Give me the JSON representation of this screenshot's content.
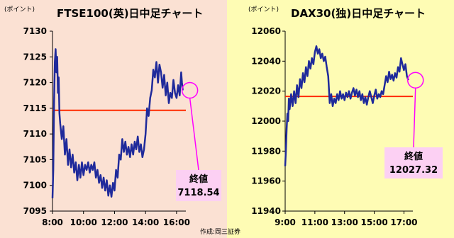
{
  "chart_data": [
    {
      "id": "ftse",
      "type": "line",
      "title": "FTSE100(英)日中足チャート",
      "unit": "(ポイント)",
      "ylim": [
        7095,
        7130
      ],
      "y_ticks": [
        7130,
        7125,
        7120,
        7115,
        7110,
        7105,
        7100,
        7095
      ],
      "x_ticks": [
        "8:00",
        "10:00",
        "12:00",
        "14:00",
        "16:00"
      ],
      "x_ticks_hours": [
        8,
        10,
        12,
        14,
        16
      ],
      "xlim_hours": [
        8,
        16.6
      ],
      "reference_line": 7114.6,
      "close_label": "終値",
      "close_value": "7118.54",
      "series": [
        {
          "values": [
            [
              8.0,
              7097.5
            ],
            [
              8.05,
              7103.0
            ],
            [
              8.1,
              7116.0
            ],
            [
              8.15,
              7124.0
            ],
            [
              8.2,
              7126.5
            ],
            [
              8.25,
              7122.0
            ],
            [
              8.3,
              7125.0
            ],
            [
              8.35,
              7118.0
            ],
            [
              8.4,
              7121.0
            ],
            [
              8.45,
              7114.0
            ],
            [
              8.5,
              7112.0
            ],
            [
              8.6,
              7109.0
            ],
            [
              8.7,
              7111.5
            ],
            [
              8.8,
              7106.0
            ],
            [
              8.9,
              7109.0
            ],
            [
              9.0,
              7104.0
            ],
            [
              9.1,
              7107.0
            ],
            [
              9.2,
              7103.5
            ],
            [
              9.3,
              7106.0
            ],
            [
              9.4,
              7102.5
            ],
            [
              9.5,
              7104.5
            ],
            [
              9.6,
              7101.0
            ],
            [
              9.7,
              7104.0
            ],
            [
              9.8,
              7101.5
            ],
            [
              9.9,
              7104.5
            ],
            [
              10.0,
              7102.0
            ],
            [
              10.1,
              7104.0
            ],
            [
              10.2,
              7103.0
            ],
            [
              10.3,
              7104.5
            ],
            [
              10.4,
              7102.5
            ],
            [
              10.5,
              7104.0
            ],
            [
              10.6,
              7103.0
            ],
            [
              10.7,
              7104.5
            ],
            [
              10.8,
              7101.5
            ],
            [
              10.9,
              7103.0
            ],
            [
              11.0,
              7100.5
            ],
            [
              11.1,
              7102.0
            ],
            [
              11.2,
              7099.5
            ],
            [
              11.3,
              7101.5
            ],
            [
              11.4,
              7099.0
            ],
            [
              11.5,
              7101.0
            ],
            [
              11.6,
              7098.0
            ],
            [
              11.7,
              7100.0
            ],
            [
              11.8,
              7097.8
            ],
            [
              11.9,
              7100.5
            ],
            [
              12.0,
              7099.0
            ],
            [
              12.1,
              7103.0
            ],
            [
              12.2,
              7101.5
            ],
            [
              12.3,
              7106.0
            ],
            [
              12.4,
              7105.0
            ],
            [
              12.5,
              7109.0
            ],
            [
              12.6,
              7106.5
            ],
            [
              12.7,
              7108.5
            ],
            [
              12.8,
              7106.0
            ],
            [
              12.9,
              7107.5
            ],
            [
              13.0,
              7105.5
            ],
            [
              13.1,
              7108.0
            ],
            [
              13.2,
              7106.0
            ],
            [
              13.3,
              7108.5
            ],
            [
              13.4,
              7107.0
            ],
            [
              13.5,
              7109.5
            ],
            [
              13.6,
              7106.5
            ],
            [
              13.7,
              7108.0
            ],
            [
              13.8,
              7105.5
            ],
            [
              13.9,
              7107.0
            ],
            [
              14.0,
              7110.0
            ],
            [
              14.1,
              7115.0
            ],
            [
              14.2,
              7113.5
            ],
            [
              14.3,
              7117.0
            ],
            [
              14.4,
              7118.5
            ],
            [
              14.5,
              7122.5
            ],
            [
              14.6,
              7121.0
            ],
            [
              14.7,
              7124.0
            ],
            [
              14.8,
              7120.0
            ],
            [
              14.9,
              7123.5
            ],
            [
              15.0,
              7122.0
            ],
            [
              15.1,
              7119.0
            ],
            [
              15.2,
              7121.5
            ],
            [
              15.3,
              7117.5
            ],
            [
              15.4,
              7120.0
            ],
            [
              15.5,
              7116.0
            ],
            [
              15.6,
              7118.0
            ],
            [
              15.7,
              7117.0
            ],
            [
              15.8,
              7120.5
            ],
            [
              15.9,
              7118.0
            ],
            [
              16.0,
              7117.0
            ],
            [
              16.1,
              7119.5
            ],
            [
              16.2,
              7117.5
            ],
            [
              16.3,
              7122.0
            ],
            [
              16.35,
              7120.0
            ],
            [
              16.4,
              7118.5
            ]
          ]
        }
      ]
    },
    {
      "id": "dax",
      "type": "line",
      "title": "DAX30(独)日中足チャート",
      "unit": "(ポイント)",
      "ylim": [
        11940,
        12060
      ],
      "y_ticks": [
        12060,
        12040,
        12020,
        12000,
        11980,
        11960,
        11940
      ],
      "x_ticks": [
        "9:00",
        "11:00",
        "13:00",
        "15:00",
        "17:00"
      ],
      "x_ticks_hours": [
        9,
        11,
        13,
        15,
        17
      ],
      "xlim_hours": [
        9,
        17.6
      ],
      "reference_line": 12016.5,
      "close_label": "終値",
      "close_value": "12027.32",
      "series": [
        {
          "values": [
            [
              9.0,
              11970.0
            ],
            [
              9.05,
              11980.0
            ],
            [
              9.1,
              11995.0
            ],
            [
              9.15,
              12005.0
            ],
            [
              9.2,
              12000.0
            ],
            [
              9.25,
              12015.0
            ],
            [
              9.3,
              12008.0
            ],
            [
              9.4,
              12018.0
            ],
            [
              9.5,
              12010.0
            ],
            [
              9.6,
              12020.0
            ],
            [
              9.7,
              12012.0
            ],
            [
              9.8,
              12024.0
            ],
            [
              9.9,
              12016.0
            ],
            [
              10.0,
              12028.0
            ],
            [
              10.1,
              12022.0
            ],
            [
              10.2,
              12032.0
            ],
            [
              10.3,
              12026.0
            ],
            [
              10.4,
              12036.0
            ],
            [
              10.5,
              12030.0
            ],
            [
              10.6,
              12040.0
            ],
            [
              10.7,
              12035.0
            ],
            [
              10.8,
              12042.0
            ],
            [
              10.9,
              12038.0
            ],
            [
              11.0,
              12046.0
            ],
            [
              11.1,
              12050.0
            ],
            [
              11.2,
              12045.0
            ],
            [
              11.3,
              12048.0
            ],
            [
              11.4,
              12042.0
            ],
            [
              11.5,
              12045.0
            ],
            [
              11.6,
              12040.0
            ],
            [
              11.7,
              12043.0
            ],
            [
              11.8,
              12036.0
            ],
            [
              11.9,
              12030.0
            ],
            [
              12.0,
              12012.0
            ],
            [
              12.1,
              12018.0
            ],
            [
              12.2,
              12010.0
            ],
            [
              12.3,
              12015.0
            ],
            [
              12.4,
              12012.0
            ],
            [
              12.5,
              12018.0
            ],
            [
              12.6,
              12014.0
            ],
            [
              12.7,
              12020.0
            ],
            [
              12.8,
              12015.0
            ],
            [
              12.9,
              12018.0
            ],
            [
              13.0,
              12014.0
            ],
            [
              13.1,
              12019.0
            ],
            [
              13.2,
              12016.0
            ],
            [
              13.3,
              12020.0
            ],
            [
              13.4,
              12015.0
            ],
            [
              13.5,
              12019.0
            ],
            [
              13.6,
              12022.0
            ],
            [
              13.7,
              12017.0
            ],
            [
              13.8,
              12021.0
            ],
            [
              13.9,
              12016.0
            ],
            [
              14.0,
              12020.0
            ],
            [
              14.1,
              12014.0
            ],
            [
              14.2,
              12018.0
            ],
            [
              14.3,
              12012.0
            ],
            [
              14.4,
              12016.0
            ],
            [
              14.5,
              12011.0
            ],
            [
              14.6,
              12016.0
            ],
            [
              14.7,
              12020.0
            ],
            [
              14.8,
              12016.0
            ],
            [
              14.9,
              12012.0
            ],
            [
              15.0,
              12017.0
            ],
            [
              15.1,
              12021.0
            ],
            [
              15.2,
              12015.0
            ],
            [
              15.3,
              12018.0
            ],
            [
              15.4,
              12016.0
            ],
            [
              15.5,
              12020.0
            ],
            [
              15.6,
              12018.0
            ],
            [
              15.7,
              12024.0
            ],
            [
              15.8,
              12030.0
            ],
            [
              15.9,
              12026.0
            ],
            [
              16.0,
              12033.0
            ],
            [
              16.1,
              12028.0
            ],
            [
              16.2,
              12031.0
            ],
            [
              16.3,
              12027.0
            ],
            [
              16.4,
              12032.0
            ],
            [
              16.5,
              12029.0
            ],
            [
              16.6,
              12036.0
            ],
            [
              16.7,
              12033.0
            ],
            [
              16.8,
              12042.0
            ],
            [
              16.9,
              12038.0
            ],
            [
              17.0,
              12034.0
            ],
            [
              17.1,
              12038.0
            ],
            [
              17.2,
              12030.0
            ],
            [
              17.3,
              12027.3
            ]
          ]
        }
      ]
    }
  ],
  "credit": "作成:岡三証券",
  "colors": {
    "ftse_bg": "#fbe1d3",
    "dax_bg": "#fefcb4",
    "series": "#1f2a9b",
    "ref_line": "#ff2a00",
    "highlight": "#ff00ff",
    "callout_bg": "#fcd0f3"
  }
}
